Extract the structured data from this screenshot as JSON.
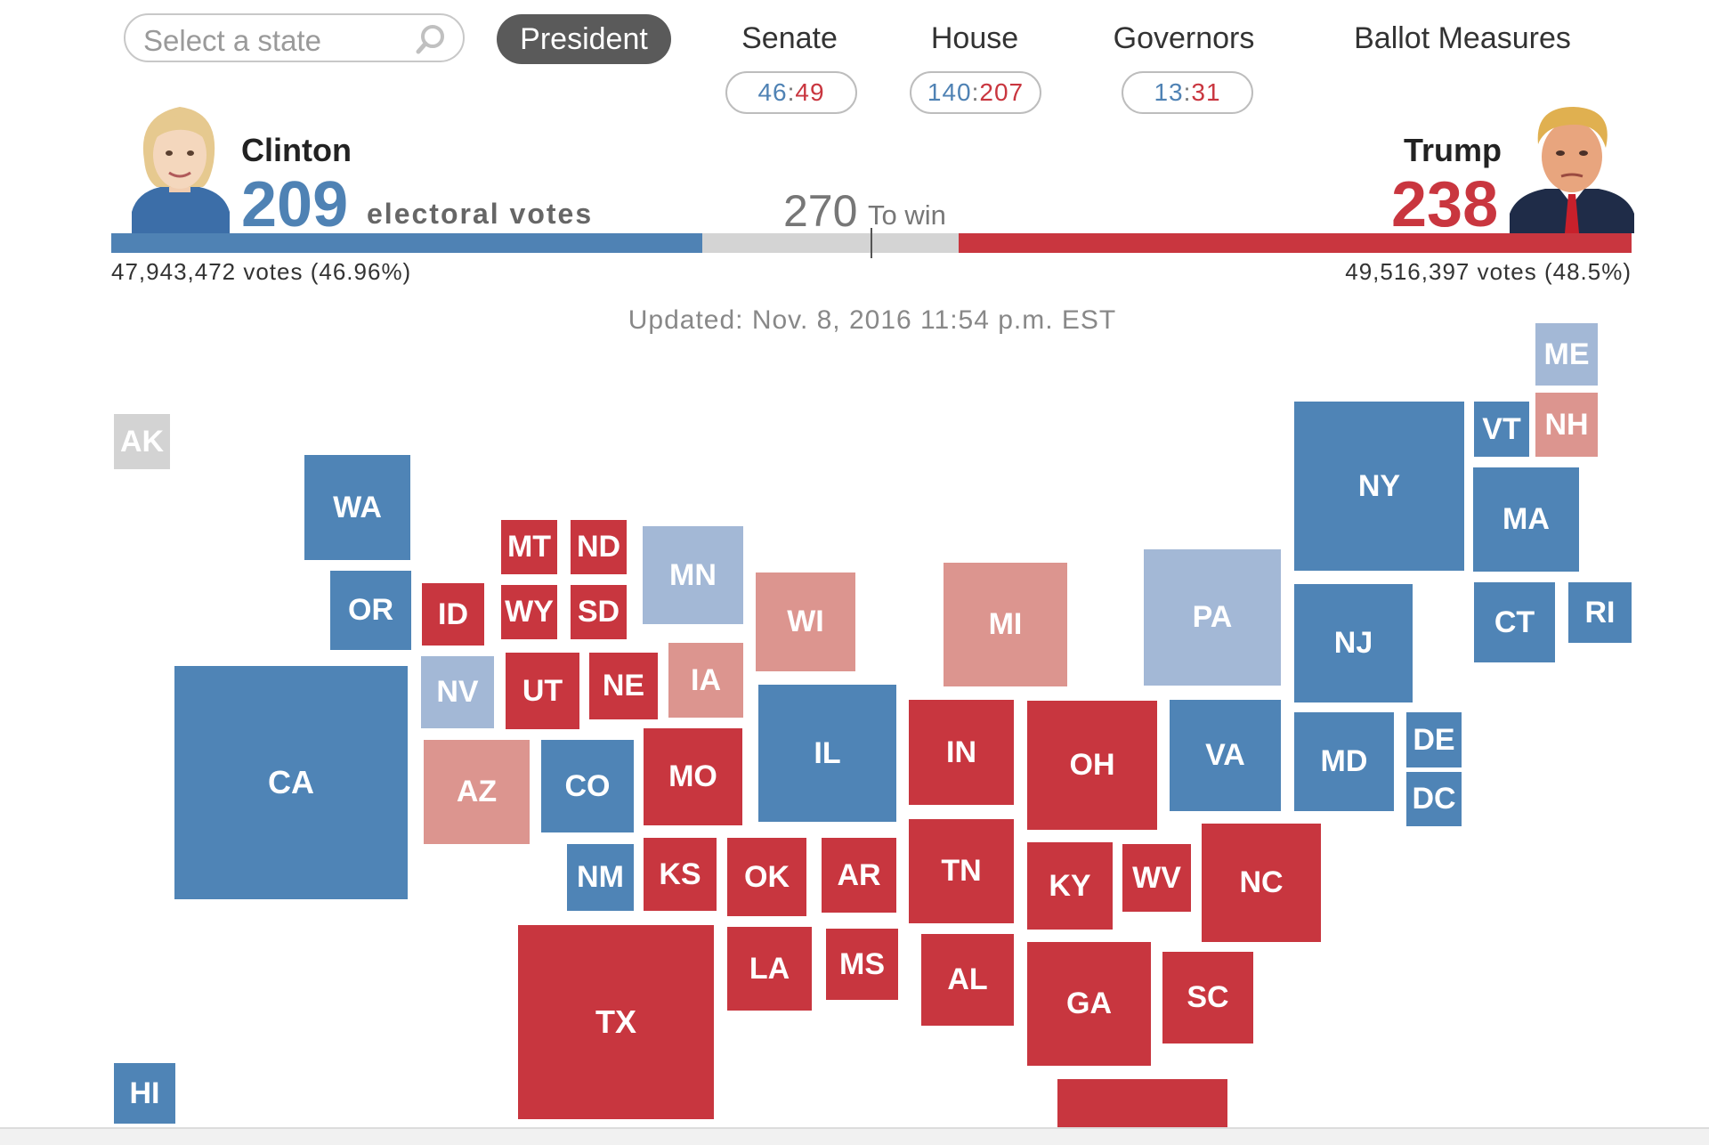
{
  "nav": {
    "search_placeholder": "Select a state",
    "president": "President",
    "senate": "Senate",
    "house": "House",
    "governors": "Governors",
    "ballot": "Ballot Measures",
    "senate_dem": "46",
    "senate_rep": "49",
    "house_dem": "140",
    "house_rep": "207",
    "gov_dem": "13",
    "gov_rep": "31",
    "colon": ":"
  },
  "clinton": {
    "name": "Clinton",
    "electoral": "209",
    "ev_label": "electoral votes",
    "popular": "47,943,472 votes (46.96%)",
    "color": "#4f82b4"
  },
  "trump": {
    "name": "Trump",
    "electoral": "238",
    "popular": "49,516,397 votes (48.5%)",
    "color": "#c9363f"
  },
  "threshold": {
    "value": "270",
    "label": "To win"
  },
  "updated": "Updated: Nov. 8, 2016 11:54 p.m. EST",
  "states": {
    "AK": "AK",
    "WA": "WA",
    "OR": "OR",
    "CA": "CA",
    "HI": "HI",
    "ID": "ID",
    "NV": "NV",
    "MT": "MT",
    "WY": "WY",
    "UT": "UT",
    "AZ": "AZ",
    "ND": "ND",
    "SD": "SD",
    "NE": "NE",
    "CO": "CO",
    "NM": "NM",
    "KS": "KS",
    "MN": "MN",
    "IA": "IA",
    "MO": "MO",
    "OK": "OK",
    "TX": "TX",
    "AR": "AR",
    "LA": "LA",
    "MS": "MS",
    "WI": "WI",
    "IL": "IL",
    "MI": "MI",
    "IN": "IN",
    "TN": "TN",
    "AL": "AL",
    "OH": "OH",
    "KY": "KY",
    "GA": "GA",
    "WV": "WV",
    "VA": "VA",
    "NC": "NC",
    "SC": "SC",
    "PA": "PA",
    "NY": "NY",
    "NJ": "NJ",
    "MD": "MD",
    "DE": "DE",
    "DC": "DC",
    "VT": "VT",
    "NH": "NH",
    "ME": "ME",
    "MA": "MA",
    "CT": "CT",
    "RI": "RI"
  }
}
